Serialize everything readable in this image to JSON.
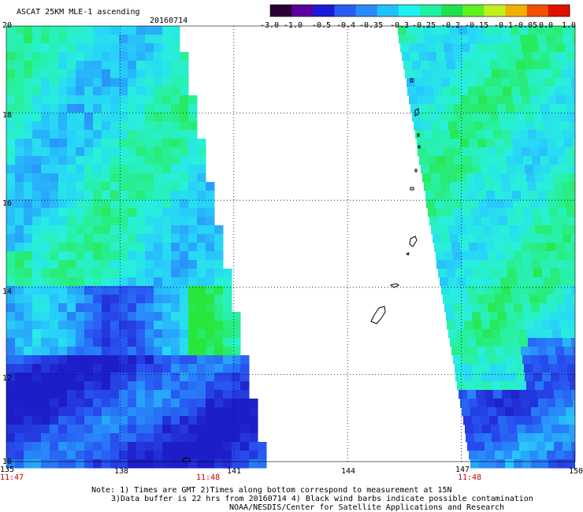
{
  "header": {
    "title": "ASCAT 25KM MLE-1 ascending",
    "date": "20160714"
  },
  "colorbar": {
    "labels": [
      "-3.0",
      "-1.0",
      "-0.5",
      "-0.4",
      "-0.35",
      "-0.3",
      "-0.25",
      "-0.2",
      "-0.15",
      "-0.1",
      "-0.05",
      "0.0",
      "1.0"
    ],
    "colors": [
      "#2a0032",
      "#5a00a0",
      "#1a1ad8",
      "#2a5cf0",
      "#2a8af8",
      "#20c0f8",
      "#20f0f0",
      "#20f0a0",
      "#20e050",
      "#60f020",
      "#c0f020",
      "#f0b000",
      "#f05000",
      "#e01000"
    ]
  },
  "map": {
    "lon_range": [
      135,
      150
    ],
    "lat_range": [
      10,
      20
    ],
    "lon_ticks": [
      "135",
      "138",
      "141",
      "144",
      "147",
      "150"
    ],
    "lat_ticks": [
      "20",
      "18",
      "16",
      "14",
      "12",
      "10"
    ],
    "pass_times": [
      "11:47",
      "11:48",
      "11:48"
    ]
  },
  "notes": {
    "line1": "Note: 1) Times are GMT 2)Times along bottom correspond to measurement at 15N",
    "line2": "3)Data buffer is 22 hrs from 20160714 4) Black wind barbs indicate possible contamination",
    "line3": "NOAA/NESDIS/Center for Satellite Applications and Research"
  }
}
